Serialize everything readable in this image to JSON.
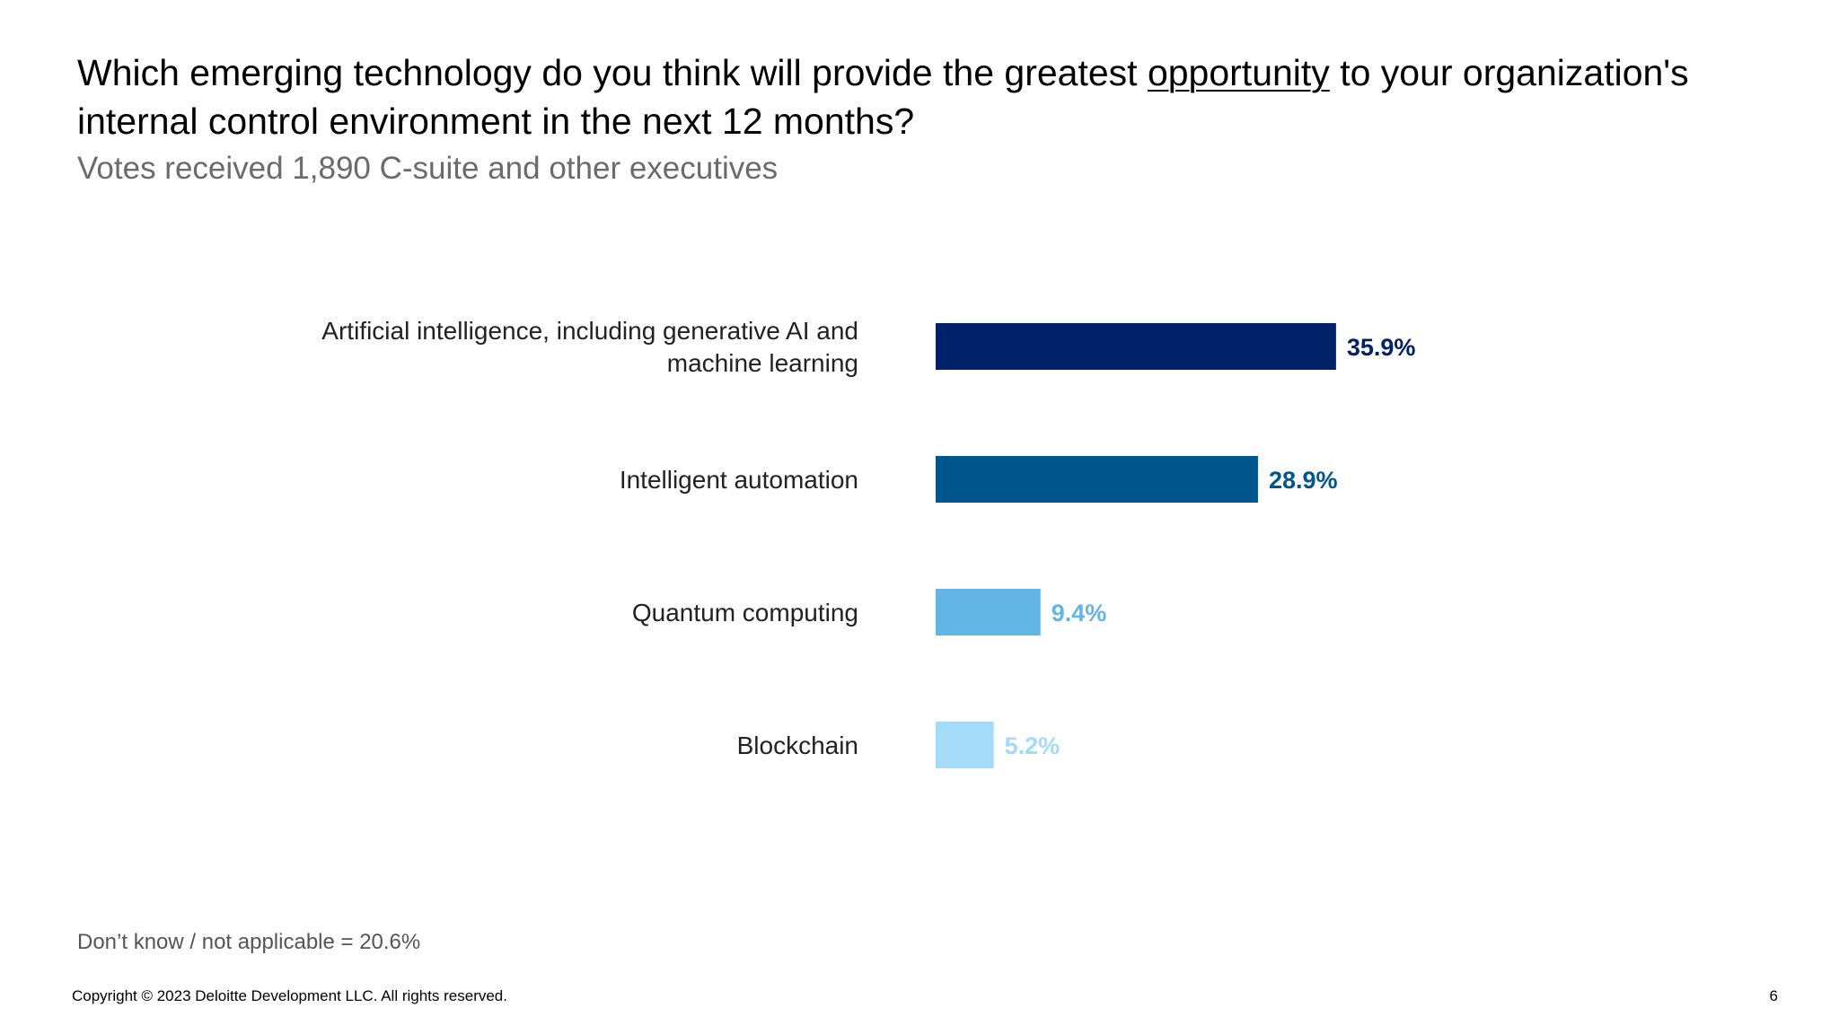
{
  "header": {
    "title_part1": "Which emerging technology do you think will provide the greatest ",
    "title_emphasis": "opportunity",
    "title_part2": " to your organization's internal control environment in the next 12 months?",
    "subtitle": "Votes received 1,890 C-suite and other executives"
  },
  "chart_data": {
    "type": "bar",
    "orientation": "horizontal",
    "categories": [
      "Artificial intelligence, including generative AI and machine learning",
      "Intelligent automation",
      "Quantum computing",
      "Blockchain"
    ],
    "category_lines": [
      [
        "Artificial intelligence, including generative AI and",
        "machine learning"
      ],
      [
        "Intelligent automation"
      ],
      [
        "Quantum computing"
      ],
      [
        "Blockchain"
      ]
    ],
    "values": [
      35.9,
      28.9,
      9.4,
      5.2
    ],
    "value_labels": [
      "35.9%",
      "28.9%",
      "9.4%",
      "5.2%"
    ],
    "colors": [
      "#012169",
      "#00558C",
      "#62B5E5",
      "#A3DBF9"
    ],
    "label_colors": [
      "#012169",
      "#00558C",
      "#62B5E5",
      "#A3DBF9"
    ],
    "xlim": [
      0,
      100
    ],
    "grid": false,
    "legend": "none",
    "title": "",
    "xlabel": "",
    "ylabel": ""
  },
  "footer": {
    "note": "Don’t know / not applicable = 20.6%",
    "copyright": "Copyright © 2023 Deloitte Development LLC. All rights reserved.",
    "page_number": "6"
  }
}
